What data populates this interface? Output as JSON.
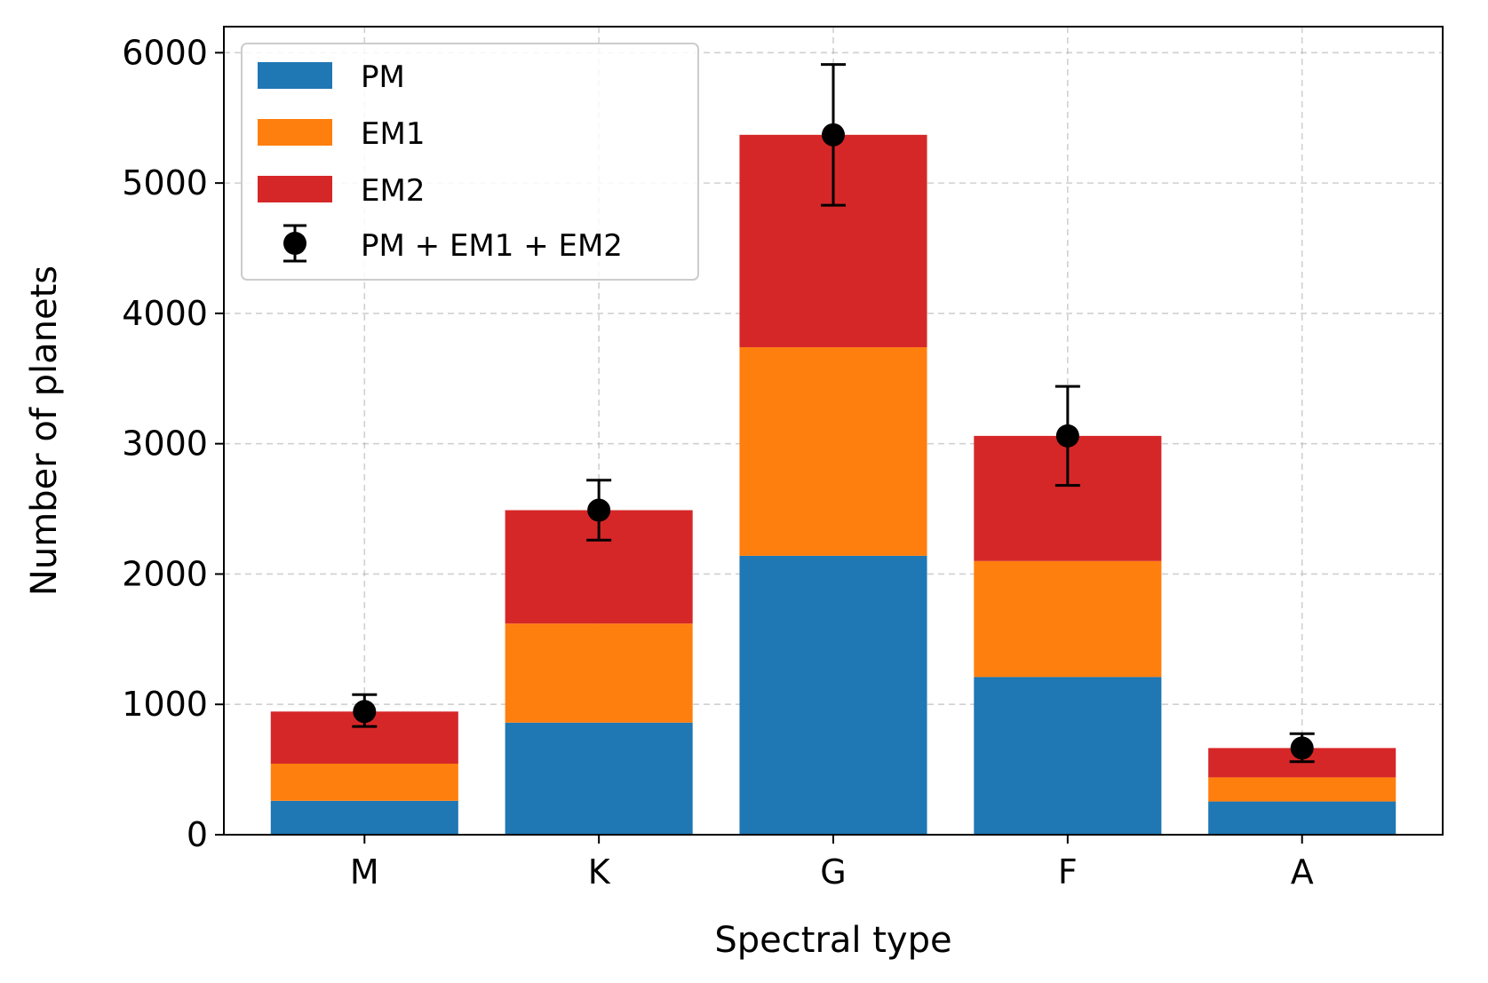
{
  "chart_data": {
    "type": "bar",
    "stacked": true,
    "title": "",
    "xlabel": "Spectral type",
    "ylabel": "Number of planets",
    "categories": [
      "M",
      "K",
      "G",
      "F",
      "A"
    ],
    "ylim": [
      0,
      6200
    ],
    "yticks": [
      0,
      1000,
      2000,
      3000,
      4000,
      5000,
      6000
    ],
    "ytick_labels": [
      "0",
      "1000",
      "2000",
      "3000",
      "4000",
      "5000",
      "6000"
    ],
    "grid": true,
    "legend_position": "top-left",
    "series": [
      {
        "name": "PM",
        "color": "#1f77b4",
        "values": [
          260,
          860,
          2140,
          1210,
          255
        ]
      },
      {
        "name": "EM1",
        "color": "#ff7f0e",
        "values": [
          285,
          760,
          1600,
          890,
          185
        ]
      },
      {
        "name": "EM2",
        "color": "#d62728",
        "values": [
          400,
          870,
          1630,
          960,
          225
        ]
      }
    ],
    "total": {
      "name": "PM + EM1 + EM2",
      "color": "#000000",
      "values": [
        945,
        2490,
        5370,
        3060,
        665
      ],
      "err_low": [
        945,
        2490,
        5370,
        3060,
        665
      ],
      "err_lower_bound": [
        830,
        2260,
        4830,
        2680,
        560
      ],
      "err_upper_bound": [
        1075,
        2720,
        5910,
        3440,
        775
      ]
    }
  }
}
